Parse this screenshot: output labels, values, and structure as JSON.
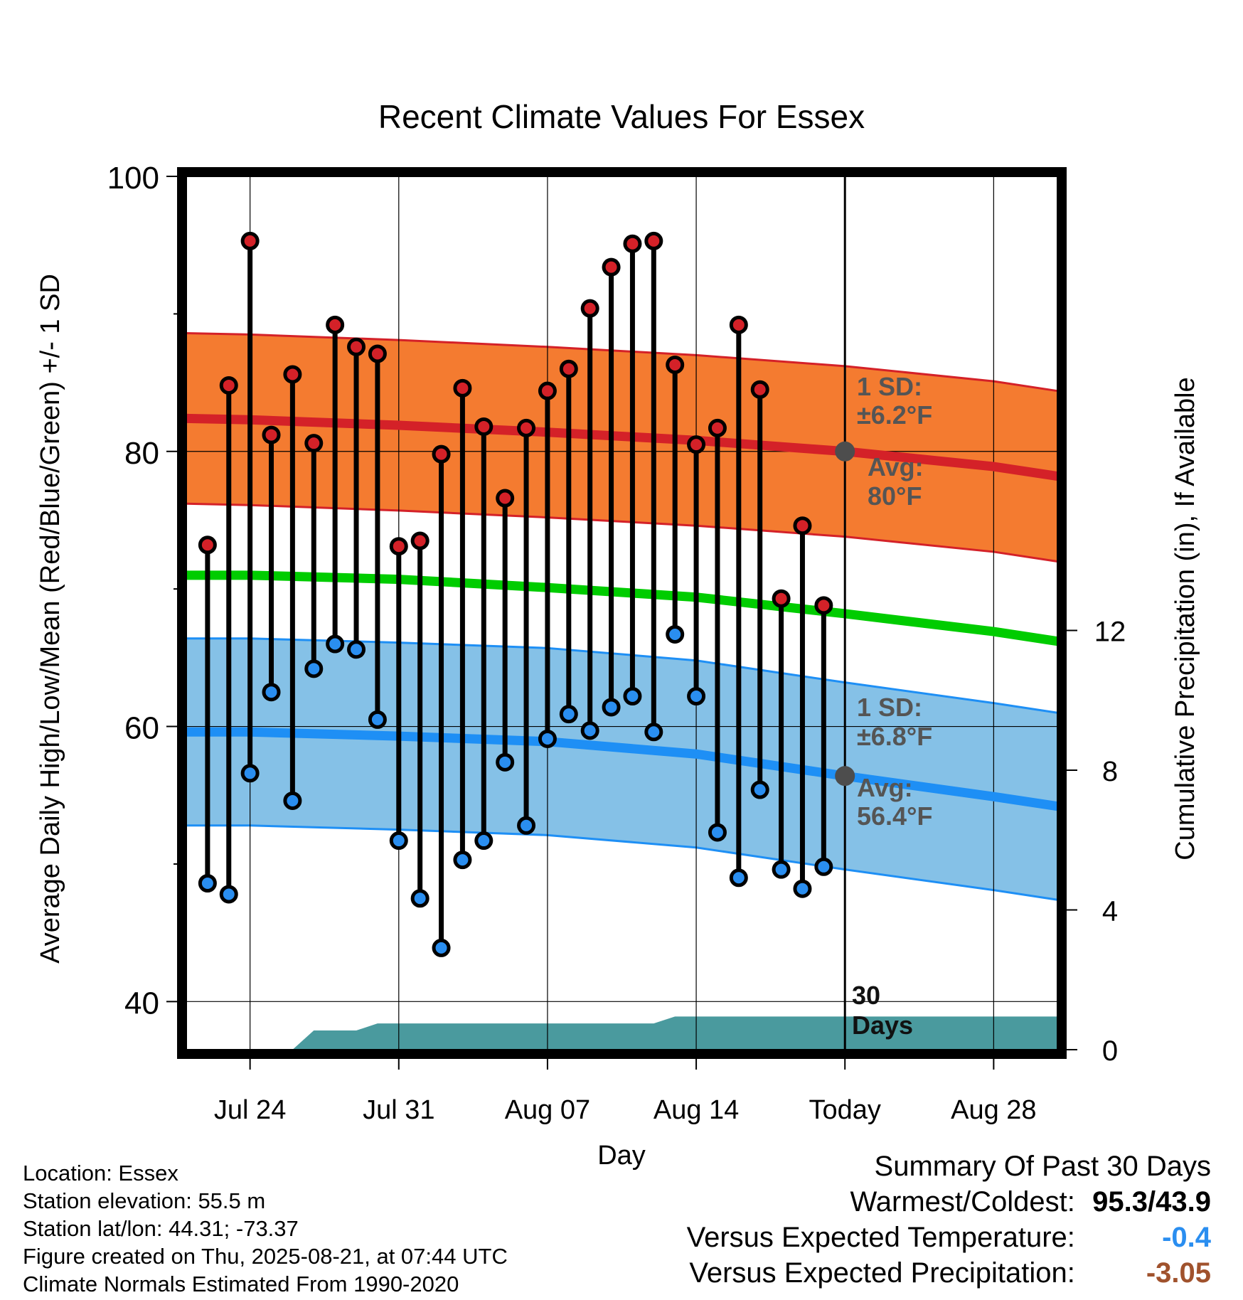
{
  "chart_data": {
    "type": "line",
    "title": "Recent Climate Values For Essex",
    "xlabel": "Day",
    "ylabel_left": "Average Daily High/Low/Mean (Red/Blue/Green) +/- 1 SD",
    "ylabel_right": "Cumulative Precipitation (in), If Available",
    "ylim": [
      36.5,
      100
    ],
    "ylim_right": [
      0,
      25
    ],
    "y_ticks": [
      40,
      60,
      80,
      100
    ],
    "y_ticks_right": [
      0,
      4,
      8,
      12
    ],
    "x_range": [
      "2025-07-21",
      "2025-08-31"
    ],
    "x_ticks": [
      {
        "date": "2025-07-24",
        "label": "Jul 24"
      },
      {
        "date": "2025-07-31",
        "label": "Jul 31"
      },
      {
        "date": "2025-08-07",
        "label": "Aug 07"
      },
      {
        "date": "2025-08-14",
        "label": "Aug 14"
      },
      {
        "date": "2025-08-21",
        "label": "Today"
      },
      {
        "date": "2025-08-28",
        "label": "Aug 28"
      }
    ],
    "daily": {
      "dates": [
        "2025-07-22",
        "2025-07-23",
        "2025-07-24",
        "2025-07-25",
        "2025-07-26",
        "2025-07-27",
        "2025-07-28",
        "2025-07-29",
        "2025-07-30",
        "2025-07-31",
        "2025-08-01",
        "2025-08-02",
        "2025-08-03",
        "2025-08-04",
        "2025-08-05",
        "2025-08-06",
        "2025-08-07",
        "2025-08-08",
        "2025-08-09",
        "2025-08-10",
        "2025-08-11",
        "2025-08-12",
        "2025-08-13",
        "2025-08-14",
        "2025-08-15",
        "2025-08-16",
        "2025-08-17",
        "2025-08-18",
        "2025-08-19",
        "2025-08-20"
      ],
      "high": [
        73.2,
        84.8,
        95.3,
        81.2,
        85.6,
        80.6,
        89.2,
        87.6,
        87.1,
        73.1,
        73.5,
        79.8,
        84.6,
        81.8,
        76.6,
        81.7,
        84.4,
        86.0,
        90.4,
        93.4,
        95.1,
        95.3,
        86.3,
        80.5,
        81.7,
        89.2,
        84.5,
        69.3,
        74.6,
        68.8
      ],
      "low": [
        48.6,
        47.8,
        56.6,
        62.5,
        54.6,
        64.2,
        66.0,
        65.6,
        60.5,
        51.7,
        47.5,
        43.9,
        50.3,
        51.7,
        57.4,
        52.8,
        59.1,
        60.9,
        59.7,
        61.4,
        62.2,
        59.6,
        66.7,
        62.2,
        52.3,
        49.0,
        55.4,
        49.6,
        48.2,
        49.8
      ]
    },
    "normals": {
      "dates": [
        "2025-07-21",
        "2025-07-24",
        "2025-07-31",
        "2025-08-07",
        "2025-08-14",
        "2025-08-21",
        "2025-08-28",
        "2025-08-31"
      ],
      "high_avg": [
        82.4,
        82.3,
        81.9,
        81.4,
        80.8,
        80.0,
        78.9,
        78.2
      ],
      "low_avg": [
        59.6,
        59.6,
        59.3,
        58.9,
        58.0,
        56.4,
        54.9,
        54.2
      ],
      "mean_avg": [
        71.0,
        71.0,
        70.7,
        70.1,
        69.4,
        68.2,
        66.9,
        66.2
      ],
      "high_sd": 6.2,
      "low_sd": 6.8
    },
    "precipitation": {
      "dates": [
        "2025-07-21",
        "2025-07-26",
        "2025-07-27",
        "2025-07-28",
        "2025-07-29",
        "2025-07-30",
        "2025-08-12",
        "2025-08-13",
        "2025-08-20",
        "2025-08-31"
      ],
      "cumulative": [
        0,
        0,
        0.55,
        0.55,
        0.55,
        0.75,
        0.75,
        0.95,
        0.95,
        0.95
      ]
    },
    "colors": {
      "high_band": "#f47b30",
      "high_line": "#d42128",
      "low_band": "#85c1e7",
      "low_line": "#1e8ff5",
      "mean_line": "#00cc00",
      "precip": "#4a9a9e",
      "high_dot": "#d42128",
      "low_dot": "#2a8ef0",
      "avg_dot": "#4d4d4d"
    }
  },
  "annotations": {
    "high_sd_1": "1 SD:",
    "high_sd_2": "±6.2°F",
    "high_avg_1": "Avg:",
    "high_avg_2": "80°F",
    "low_sd_1": "1 SD:",
    "low_sd_2": "±6.8°F",
    "low_avg_1": "Avg:",
    "low_avg_2": "56.4°F",
    "days_1": "30",
    "days_2": "Days"
  },
  "footer_left": {
    "location": "Location: Essex",
    "elevation": "Station elevation: 55.5 m",
    "latlon": "Station lat/lon: 44.31; -73.37",
    "created": "Figure created on Thu, 2025-08-21, at 07:44 UTC",
    "normals": "Climate Normals Estimated From 1990-2020"
  },
  "summary": {
    "heading": "Summary Of Past 30 Days",
    "warmest_label": "Warmest/Coldest:",
    "warmest_value": "95.3/43.9",
    "temp_label": "Versus Expected Temperature:",
    "temp_value": "-0.4",
    "temp_color": "#2a8ef0",
    "precip_label": "Versus Expected Precipitation:",
    "precip_value": "-3.05",
    "precip_color": "#a0522d"
  }
}
